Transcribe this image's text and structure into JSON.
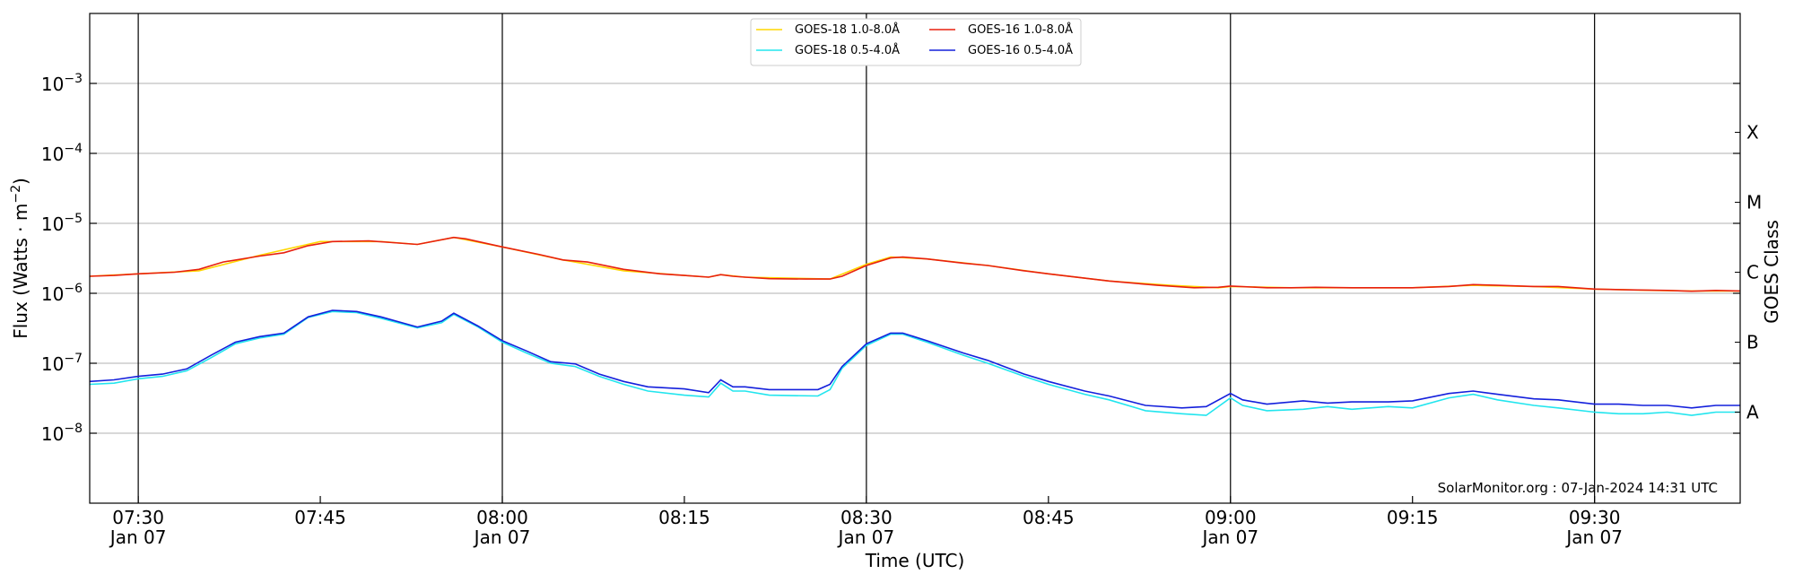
{
  "chart_data": {
    "type": "line",
    "xlabel": "Time (UTC)",
    "ylabel": "Flux (Watts · m",
    "ylabel_sup": "−2",
    "ylabel_close": ")",
    "right_label": "GOES Class",
    "credit": "SolarMonitor.org : 07-Jan-2024 14:31 UTC",
    "y_scale": "log",
    "ylim": [
      1e-09,
      0.01
    ],
    "xlim": [
      "07:26",
      "09:42"
    ],
    "grid": true,
    "legend_position": "top-center",
    "y_ticks": [
      {
        "value": 1e-08,
        "base": "10",
        "exp": "−8"
      },
      {
        "value": 1e-07,
        "base": "10",
        "exp": "−7"
      },
      {
        "value": 1e-06,
        "base": "10",
        "exp": "−6"
      },
      {
        "value": 1e-05,
        "base": "10",
        "exp": "−5"
      },
      {
        "value": 0.0001,
        "base": "10",
        "exp": "−4"
      },
      {
        "value": 0.001,
        "base": "10",
        "exp": "−3"
      }
    ],
    "x_ticks": [
      {
        "time": "07:30",
        "label": "07:30",
        "date": "Jan 07",
        "line": true
      },
      {
        "time": "07:45",
        "label": "07:45",
        "date": "",
        "line": false
      },
      {
        "time": "08:00",
        "label": "08:00",
        "date": "Jan 07",
        "line": true
      },
      {
        "time": "08:15",
        "label": "08:15",
        "date": "",
        "line": false
      },
      {
        "time": "08:30",
        "label": "08:30",
        "date": "Jan 07",
        "line": true
      },
      {
        "time": "08:45",
        "label": "08:45",
        "date": "",
        "line": false
      },
      {
        "time": "09:00",
        "label": "09:00",
        "date": "Jan 07",
        "line": true
      },
      {
        "time": "09:15",
        "label": "09:15",
        "date": "",
        "line": false
      },
      {
        "time": "09:30",
        "label": "09:30",
        "date": "Jan 07",
        "line": true
      }
    ],
    "goes_classes": [
      {
        "label": "X",
        "value": 0.0002
      },
      {
        "label": "M",
        "value": 2e-05
      },
      {
        "label": "C",
        "value": 2e-06
      },
      {
        "label": "B",
        "value": 2e-07
      },
      {
        "label": "A",
        "value": 2e-08
      }
    ],
    "series": [
      {
        "name": "GOES-18 1.0-8.0Å",
        "color": "#ffd700",
        "points": [
          [
            "07:26",
            1.75e-06
          ],
          [
            "07:30",
            1.9e-06
          ],
          [
            "07:35",
            2.1e-06
          ],
          [
            "07:40",
            3.5e-06
          ],
          [
            "07:45",
            5.5e-06
          ],
          [
            "07:50",
            5.5e-06
          ],
          [
            "07:53",
            5e-06
          ],
          [
            "07:56",
            6.3e-06
          ],
          [
            "08:00",
            4.6e-06
          ],
          [
            "08:05",
            3e-06
          ],
          [
            "08:10",
            2.1e-06
          ],
          [
            "08:15",
            1.8e-06
          ],
          [
            "08:17",
            1.7e-06
          ],
          [
            "08:18",
            1.85e-06
          ],
          [
            "08:20",
            1.7e-06
          ],
          [
            "08:27",
            1.6e-06
          ],
          [
            "08:30",
            2.6e-06
          ],
          [
            "08:32",
            3.3e-06
          ],
          [
            "08:35",
            3.1e-06
          ],
          [
            "08:40",
            2.5e-06
          ],
          [
            "08:45",
            1.9e-06
          ],
          [
            "08:50",
            1.5e-06
          ],
          [
            "08:55",
            1.3e-06
          ],
          [
            "08:59",
            1.2e-06
          ],
          [
            "09:00",
            1.25e-06
          ],
          [
            "09:05",
            1.2e-06
          ],
          [
            "09:10",
            1.2e-06
          ],
          [
            "09:15",
            1.2e-06
          ],
          [
            "09:20",
            1.3e-06
          ],
          [
            "09:25",
            1.25e-06
          ],
          [
            "09:30",
            1.15e-06
          ],
          [
            "09:35",
            1.1e-06
          ],
          [
            "09:38",
            1.08e-06
          ],
          [
            "09:42",
            1.08e-06
          ]
        ]
      },
      {
        "name": "GOES-16 1.0-8.0Å",
        "color": "#e8200f",
        "points": [
          [
            "07:26",
            1.75e-06
          ],
          [
            "07:28",
            1.8e-06
          ],
          [
            "07:30",
            1.9e-06
          ],
          [
            "07:33",
            2e-06
          ],
          [
            "07:35",
            2.2e-06
          ],
          [
            "07:37",
            2.8e-06
          ],
          [
            "07:40",
            3.4e-06
          ],
          [
            "07:42",
            3.8e-06
          ],
          [
            "07:44",
            4.8e-06
          ],
          [
            "07:46",
            5.5e-06
          ],
          [
            "07:49",
            5.6e-06
          ],
          [
            "07:51",
            5.3e-06
          ],
          [
            "07:53",
            5e-06
          ],
          [
            "07:56",
            6.3e-06
          ],
          [
            "07:57",
            6e-06
          ],
          [
            "08:00",
            4.6e-06
          ],
          [
            "08:03",
            3.6e-06
          ],
          [
            "08:05",
            3e-06
          ],
          [
            "08:07",
            2.8e-06
          ],
          [
            "08:10",
            2.2e-06
          ],
          [
            "08:13",
            1.9e-06
          ],
          [
            "08:15",
            1.8e-06
          ],
          [
            "08:17",
            1.7e-06
          ],
          [
            "08:18",
            1.85e-06
          ],
          [
            "08:19",
            1.75e-06
          ],
          [
            "08:20",
            1.7e-06
          ],
          [
            "08:22",
            1.62e-06
          ],
          [
            "08:25",
            1.6e-06
          ],
          [
            "08:27",
            1.6e-06
          ],
          [
            "08:28",
            1.75e-06
          ],
          [
            "08:30",
            2.5e-06
          ],
          [
            "08:32",
            3.2e-06
          ],
          [
            "08:33",
            3.3e-06
          ],
          [
            "08:35",
            3.1e-06
          ],
          [
            "08:38",
            2.7e-06
          ],
          [
            "08:40",
            2.5e-06
          ],
          [
            "08:43",
            2.1e-06
          ],
          [
            "08:45",
            1.9e-06
          ],
          [
            "08:50",
            1.5e-06
          ],
          [
            "08:54",
            1.3e-06
          ],
          [
            "08:57",
            1.2e-06
          ],
          [
            "08:59",
            1.22e-06
          ],
          [
            "09:00",
            1.27e-06
          ],
          [
            "09:03",
            1.2e-06
          ],
          [
            "09:05",
            1.2e-06
          ],
          [
            "09:07",
            1.22e-06
          ],
          [
            "09:10",
            1.2e-06
          ],
          [
            "09:15",
            1.2e-06
          ],
          [
            "09:18",
            1.25e-06
          ],
          [
            "09:20",
            1.33e-06
          ],
          [
            "09:22",
            1.3e-06
          ],
          [
            "09:25",
            1.25e-06
          ],
          [
            "09:27",
            1.25e-06
          ],
          [
            "09:30",
            1.15e-06
          ],
          [
            "09:33",
            1.12e-06
          ],
          [
            "09:36",
            1.1e-06
          ],
          [
            "09:38",
            1.07e-06
          ],
          [
            "09:40",
            1.1e-06
          ],
          [
            "09:42",
            1.08e-06
          ]
        ]
      },
      {
        "name": "GOES-18 0.5-4.0Å",
        "color": "#22e5ee",
        "points": [
          [
            "07:26",
            5e-08
          ],
          [
            "07:28",
            5.2e-08
          ],
          [
            "07:30",
            6e-08
          ],
          [
            "07:32",
            6.5e-08
          ],
          [
            "07:34",
            7.8e-08
          ],
          [
            "07:36",
            1.2e-07
          ],
          [
            "07:38",
            1.9e-07
          ],
          [
            "07:40",
            2.3e-07
          ],
          [
            "07:42",
            2.6e-07
          ],
          [
            "07:44",
            4.5e-07
          ],
          [
            "07:46",
            5.5e-07
          ],
          [
            "07:48",
            5.3e-07
          ],
          [
            "07:50",
            4.4e-07
          ],
          [
            "07:53",
            3.2e-07
          ],
          [
            "07:55",
            3.8e-07
          ],
          [
            "07:56",
            5e-07
          ],
          [
            "07:58",
            3.3e-07
          ],
          [
            "08:00",
            2e-07
          ],
          [
            "08:02",
            1.4e-07
          ],
          [
            "08:04",
            1e-07
          ],
          [
            "08:06",
            9e-08
          ],
          [
            "08:08",
            6.5e-08
          ],
          [
            "08:10",
            5e-08
          ],
          [
            "08:12",
            4e-08
          ],
          [
            "08:15",
            3.5e-08
          ],
          [
            "08:17",
            3.3e-08
          ],
          [
            "08:18",
            5.2e-08
          ],
          [
            "08:19",
            4e-08
          ],
          [
            "08:20",
            4e-08
          ],
          [
            "08:22",
            3.5e-08
          ],
          [
            "08:26",
            3.4e-08
          ],
          [
            "08:27",
            4.2e-08
          ],
          [
            "08:28",
            8.5e-08
          ],
          [
            "08:30",
            1.8e-07
          ],
          [
            "08:32",
            2.6e-07
          ],
          [
            "08:33",
            2.6e-07
          ],
          [
            "08:35",
            2e-07
          ],
          [
            "08:38",
            1.3e-07
          ],
          [
            "08:40",
            1e-07
          ],
          [
            "08:43",
            6.5e-08
          ],
          [
            "08:45",
            5e-08
          ],
          [
            "08:48",
            3.6e-08
          ],
          [
            "08:50",
            3e-08
          ],
          [
            "08:53",
            2.1e-08
          ],
          [
            "08:56",
            1.9e-08
          ],
          [
            "08:58",
            1.8e-08
          ],
          [
            "09:00",
            3.2e-08
          ],
          [
            "09:01",
            2.5e-08
          ],
          [
            "09:03",
            2.1e-08
          ],
          [
            "09:06",
            2.2e-08
          ],
          [
            "09:08",
            2.4e-08
          ],
          [
            "09:10",
            2.2e-08
          ],
          [
            "09:13",
            2.4e-08
          ],
          [
            "09:15",
            2.3e-08
          ],
          [
            "09:18",
            3.2e-08
          ],
          [
            "09:20",
            3.6e-08
          ],
          [
            "09:22",
            3e-08
          ],
          [
            "09:25",
            2.5e-08
          ],
          [
            "09:27",
            2.3e-08
          ],
          [
            "09:30",
            2e-08
          ],
          [
            "09:32",
            1.9e-08
          ],
          [
            "09:34",
            1.9e-08
          ],
          [
            "09:36",
            2e-08
          ],
          [
            "09:38",
            1.8e-08
          ],
          [
            "09:40",
            2e-08
          ],
          [
            "09:42",
            2e-08
          ]
        ]
      },
      {
        "name": "GOES-16 0.5-4.0Å",
        "color": "#1420dc",
        "points": [
          [
            "07:26",
            5.5e-08
          ],
          [
            "07:28",
            5.8e-08
          ],
          [
            "07:30",
            6.5e-08
          ],
          [
            "07:32",
            7e-08
          ],
          [
            "07:34",
            8.3e-08
          ],
          [
            "07:36",
            1.3e-07
          ],
          [
            "07:38",
            2e-07
          ],
          [
            "07:40",
            2.4e-07
          ],
          [
            "07:42",
            2.7e-07
          ],
          [
            "07:44",
            4.6e-07
          ],
          [
            "07:46",
            5.7e-07
          ],
          [
            "07:48",
            5.5e-07
          ],
          [
            "07:50",
            4.6e-07
          ],
          [
            "07:53",
            3.3e-07
          ],
          [
            "07:55",
            4e-07
          ],
          [
            "07:56",
            5.2e-07
          ],
          [
            "07:58",
            3.4e-07
          ],
          [
            "08:00",
            2.1e-07
          ],
          [
            "08:02",
            1.5e-07
          ],
          [
            "08:04",
            1.05e-07
          ],
          [
            "08:06",
            9.8e-08
          ],
          [
            "08:08",
            7e-08
          ],
          [
            "08:10",
            5.5e-08
          ],
          [
            "08:12",
            4.6e-08
          ],
          [
            "08:15",
            4.3e-08
          ],
          [
            "08:17",
            3.8e-08
          ],
          [
            "08:18",
            5.8e-08
          ],
          [
            "08:19",
            4.6e-08
          ],
          [
            "08:20",
            4.6e-08
          ],
          [
            "08:22",
            4.2e-08
          ],
          [
            "08:26",
            4.2e-08
          ],
          [
            "08:27",
            5e-08
          ],
          [
            "08:28",
            9e-08
          ],
          [
            "08:30",
            1.9e-07
          ],
          [
            "08:32",
            2.7e-07
          ],
          [
            "08:33",
            2.7e-07
          ],
          [
            "08:35",
            2.1e-07
          ],
          [
            "08:38",
            1.4e-07
          ],
          [
            "08:40",
            1.1e-07
          ],
          [
            "08:43",
            7e-08
          ],
          [
            "08:45",
            5.5e-08
          ],
          [
            "08:48",
            4e-08
          ],
          [
            "08:50",
            3.4e-08
          ],
          [
            "08:53",
            2.5e-08
          ],
          [
            "08:56",
            2.3e-08
          ],
          [
            "08:58",
            2.4e-08
          ],
          [
            "09:00",
            3.7e-08
          ],
          [
            "09:01",
            3e-08
          ],
          [
            "09:03",
            2.6e-08
          ],
          [
            "09:06",
            2.9e-08
          ],
          [
            "09:08",
            2.7e-08
          ],
          [
            "09:10",
            2.8e-08
          ],
          [
            "09:13",
            2.8e-08
          ],
          [
            "09:15",
            2.9e-08
          ],
          [
            "09:18",
            3.7e-08
          ],
          [
            "09:20",
            4e-08
          ],
          [
            "09:22",
            3.6e-08
          ],
          [
            "09:25",
            3.1e-08
          ],
          [
            "09:27",
            3e-08
          ],
          [
            "09:30",
            2.6e-08
          ],
          [
            "09:32",
            2.6e-08
          ],
          [
            "09:34",
            2.5e-08
          ],
          [
            "09:36",
            2.5e-08
          ],
          [
            "09:38",
            2.3e-08
          ],
          [
            "09:40",
            2.5e-08
          ],
          [
            "09:42",
            2.5e-08
          ]
        ]
      }
    ],
    "legend_order": [
      0,
      2,
      1,
      3
    ]
  }
}
